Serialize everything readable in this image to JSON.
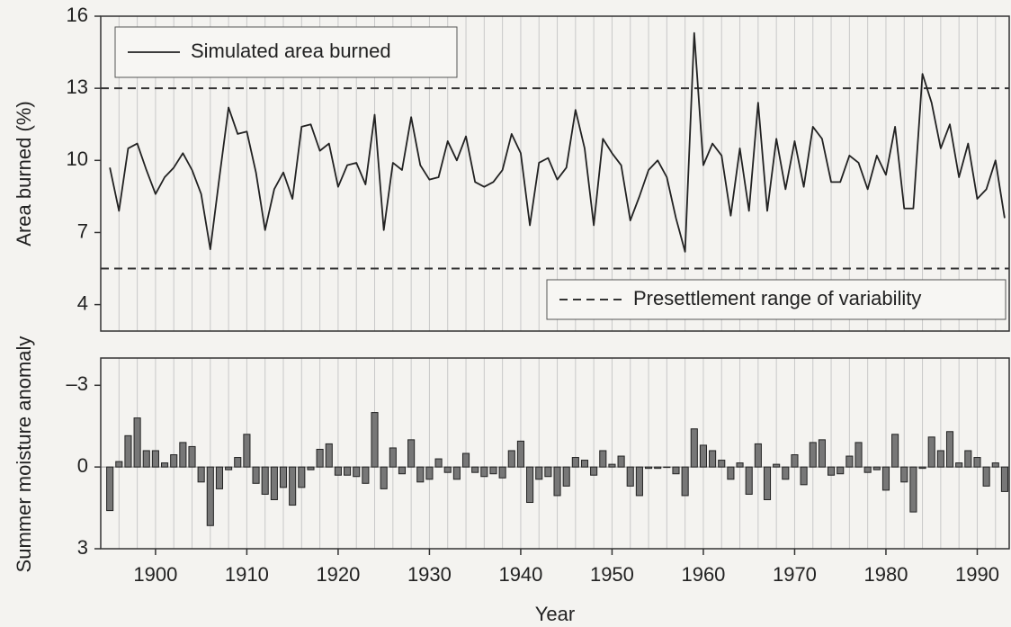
{
  "chart_data": [
    {
      "type": "line",
      "ylabel": "Area burned (%)",
      "x": [
        1895,
        1896,
        1897,
        1898,
        1899,
        1900,
        1901,
        1902,
        1903,
        1904,
        1905,
        1906,
        1907,
        1908,
        1909,
        1910,
        1911,
        1912,
        1913,
        1914,
        1915,
        1916,
        1917,
        1918,
        1919,
        1920,
        1921,
        1922,
        1923,
        1924,
        1925,
        1926,
        1927,
        1928,
        1929,
        1930,
        1931,
        1932,
        1933,
        1934,
        1935,
        1936,
        1937,
        1938,
        1939,
        1940,
        1941,
        1942,
        1943,
        1944,
        1945,
        1946,
        1947,
        1948,
        1949,
        1950,
        1951,
        1952,
        1953,
        1954,
        1955,
        1956,
        1957,
        1958,
        1959,
        1960,
        1961,
        1962,
        1963,
        1964,
        1965,
        1966,
        1967,
        1968,
        1969,
        1970,
        1971,
        1972,
        1973,
        1974,
        1975,
        1976,
        1977,
        1978,
        1979,
        1980,
        1981,
        1982,
        1983,
        1984,
        1985,
        1986,
        1987,
        1988,
        1989,
        1990,
        1991,
        1992,
        1993
      ],
      "series": [
        {
          "name": "Simulated area burned",
          "color": "#222222",
          "values": [
            9.7,
            7.9,
            10.5,
            10.7,
            9.6,
            8.6,
            9.3,
            9.7,
            10.3,
            9.6,
            8.6,
            6.3,
            9.3,
            12.2,
            11.1,
            11.2,
            9.5,
            7.1,
            8.8,
            9.5,
            8.4,
            11.4,
            11.5,
            10.4,
            10.7,
            8.9,
            9.8,
            9.9,
            9.0,
            11.9,
            7.1,
            9.9,
            9.6,
            11.8,
            9.8,
            9.2,
            9.3,
            10.8,
            10.0,
            11.0,
            9.1,
            8.9,
            9.1,
            9.6,
            11.1,
            10.3,
            7.3,
            9.9,
            10.1,
            9.2,
            9.7,
            12.1,
            10.5,
            7.3,
            10.9,
            10.3,
            9.8,
            7.5,
            8.5,
            9.6,
            10.0,
            9.3,
            7.6,
            6.2,
            15.3,
            9.8,
            10.7,
            10.2,
            7.7,
            10.5,
            7.9,
            12.4,
            7.9,
            10.9,
            8.8,
            10.8,
            8.9,
            11.4,
            10.9,
            9.1,
            9.1,
            10.2,
            9.9,
            8.8,
            10.2,
            9.4,
            11.4,
            8.0,
            8.0,
            13.6,
            12.4,
            10.5,
            11.5,
            9.3,
            10.7,
            8.4,
            8.8,
            10.0,
            7.6
          ]
        }
      ],
      "reference_lines": {
        "name": "Presettlement range of variability",
        "values": [
          13,
          5.5
        ],
        "color": "#333333",
        "legend": "lower right"
      },
      "legend": "upper left",
      "xlim": [
        1894,
        1993.5
      ],
      "ylim": [
        2.9,
        16
      ],
      "yticks": [
        4,
        7,
        10,
        13,
        16
      ],
      "xgrid": [
        1896,
        1898,
        1900,
        1902,
        1904,
        1906,
        1908,
        1910,
        1912,
        1914,
        1916,
        1918,
        1920,
        1922,
        1924,
        1926,
        1928,
        1930,
        1932,
        1934,
        1936,
        1938,
        1940,
        1942,
        1944,
        1946,
        1948,
        1950,
        1952,
        1954,
        1956,
        1958,
        1960,
        1962,
        1964,
        1966,
        1968,
        1970,
        1972,
        1974,
        1976,
        1978,
        1980,
        1982,
        1984,
        1986,
        1988,
        1990,
        1992
      ]
    },
    {
      "type": "bar",
      "ylabel": "Summer moisture anomaly",
      "xlabel": "Year",
      "x": [
        1895,
        1896,
        1897,
        1898,
        1899,
        1900,
        1901,
        1902,
        1903,
        1904,
        1905,
        1906,
        1907,
        1908,
        1909,
        1910,
        1911,
        1912,
        1913,
        1914,
        1915,
        1916,
        1917,
        1918,
        1919,
        1920,
        1921,
        1922,
        1923,
        1924,
        1925,
        1926,
        1927,
        1928,
        1929,
        1930,
        1931,
        1932,
        1933,
        1934,
        1935,
        1936,
        1937,
        1938,
        1939,
        1940,
        1941,
        1942,
        1943,
        1944,
        1945,
        1946,
        1947,
        1948,
        1949,
        1950,
        1951,
        1952,
        1953,
        1954,
        1955,
        1956,
        1957,
        1958,
        1959,
        1960,
        1961,
        1962,
        1963,
        1964,
        1965,
        1966,
        1967,
        1968,
        1969,
        1970,
        1971,
        1972,
        1973,
        1974,
        1975,
        1976,
        1977,
        1978,
        1979,
        1980,
        1981,
        1982,
        1983,
        1984,
        1985,
        1986,
        1987,
        1988,
        1989,
        1990,
        1991,
        1992,
        1993
      ],
      "values": [
        1.6,
        -0.2,
        -1.15,
        -1.8,
        -0.6,
        -0.6,
        -0.15,
        -0.45,
        -0.9,
        -0.75,
        0.55,
        2.15,
        0.8,
        0.1,
        -0.35,
        -1.2,
        0.6,
        1.0,
        1.2,
        0.75,
        1.4,
        0.75,
        0.1,
        -0.65,
        -0.85,
        0.3,
        0.3,
        0.35,
        0.6,
        -2.0,
        0.8,
        -0.7,
        0.25,
        -1.0,
        0.55,
        0.45,
        -0.3,
        0.2,
        0.45,
        -0.5,
        0.2,
        0.35,
        0.25,
        0.4,
        -0.6,
        -0.95,
        1.3,
        0.45,
        0.35,
        1.05,
        0.7,
        -0.35,
        -0.25,
        0.3,
        -0.6,
        -0.1,
        -0.4,
        0.7,
        1.05,
        0.05,
        0.05,
        0,
        0.25,
        1.05,
        -1.4,
        -0.8,
        -0.6,
        -0.25,
        0.45,
        -0.15,
        1.0,
        -0.85,
        1.2,
        -0.1,
        0.45,
        -0.45,
        0.65,
        -0.9,
        -1.0,
        0.3,
        0.25,
        -0.4,
        -0.9,
        0.2,
        0.1,
        0.85,
        -1.2,
        0.55,
        1.65,
        0.05,
        -1.1,
        -0.6,
        -1.3,
        -0.15,
        -0.6,
        -0.35,
        0.7,
        -0.15,
        0.9
      ],
      "color": "#777777",
      "xlim": [
        1894,
        1993.5
      ],
      "ylim": [
        -4,
        3
      ],
      "y_inverted": true,
      "yticks": [
        {
          "value": -3,
          "label": "–3"
        },
        0,
        3
      ],
      "xticks": [
        1900,
        1910,
        1920,
        1930,
        1940,
        1950,
        1960,
        1970,
        1980,
        1990
      ],
      "xgrid": [
        1896,
        1898,
        1900,
        1902,
        1904,
        1906,
        1908,
        1910,
        1912,
        1914,
        1916,
        1918,
        1920,
        1922,
        1924,
        1926,
        1928,
        1930,
        1932,
        1934,
        1936,
        1938,
        1940,
        1942,
        1944,
        1946,
        1948,
        1950,
        1952,
        1954,
        1956,
        1958,
        1960,
        1962,
        1964,
        1966,
        1968,
        1970,
        1972,
        1974,
        1976,
        1978,
        1980,
        1982,
        1984,
        1986,
        1988,
        1990,
        1992
      ]
    }
  ]
}
